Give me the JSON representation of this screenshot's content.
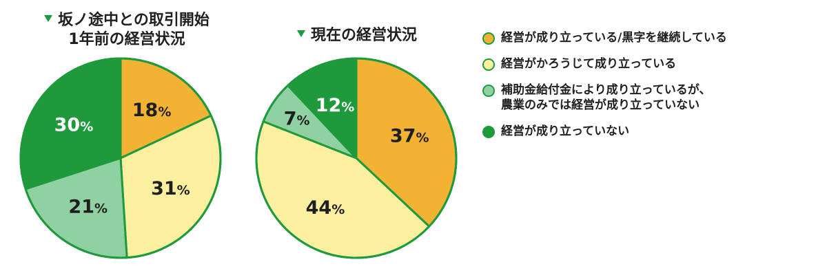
{
  "chart_data": [
    {
      "type": "pie",
      "title": "坂ノ途中との取引開始\n1年前の経営状況",
      "categories": [
        "経営が成り立っている/黒字を継続している",
        "経営がかろうじて成り立っている",
        "補助金給付金により成り立っているが、農業のみでは経営が成り立っていない",
        "経営が成り立っていない"
      ],
      "values": [
        18,
        31,
        21,
        30
      ],
      "labels": [
        "18",
        "31",
        "21",
        "30"
      ]
    },
    {
      "type": "pie",
      "title": "現在の経営状況",
      "categories": [
        "経営が成り立っている/黒字を継続している",
        "経営がかろうじて成り立っている",
        "補助金給付金により成り立っているが、農業のみでは経営が成り立っていない",
        "経営が成り立っていない"
      ],
      "values": [
        37,
        44,
        7,
        12
      ],
      "labels": [
        "37",
        "44",
        "7",
        "12"
      ]
    }
  ],
  "percent_sign": "%",
  "legend": [
    {
      "label": "経営が成り立っている/黒字を継続している",
      "color": "#f2b233"
    },
    {
      "label": "経営がかろうじて成り立っている",
      "color": "#fbf0a0"
    },
    {
      "label": "補助金給付金により成り立っているが、\n農業のみでは経営が成り立っていない",
      "color": "#8fd1a0"
    },
    {
      "label": "経営が成り立っていない",
      "color": "#1e9a3c"
    }
  ],
  "colors": {
    "border": "#1e9a3c",
    "label_dark": "#1f1f1f",
    "label_light": "#ffffff"
  }
}
